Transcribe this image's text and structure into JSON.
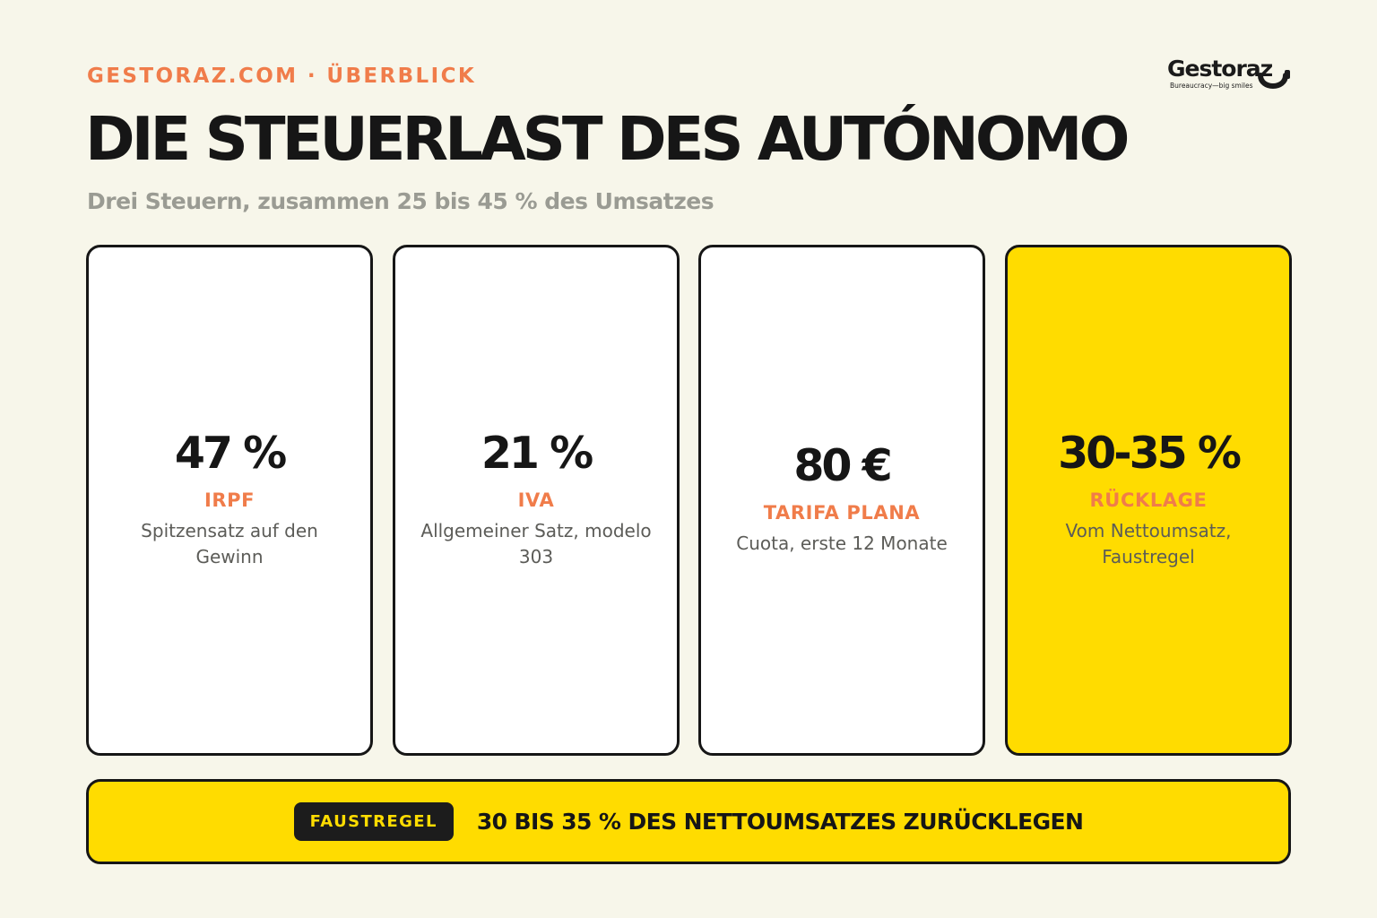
{
  "header": {
    "eyebrow": "GESTORAZ.COM · ÜBERBLICK",
    "title": "DIE STEUERLAST DES AUTÓNOMO",
    "subtitle": "Drei Steuern, zusammen 25 bis 45 % des Umsatzes"
  },
  "logo": {
    "wordmark": "Gestoraz",
    "tagline": "Bureaucracy—big smiles",
    "icon": "smile-icon"
  },
  "cards": [
    {
      "value": "47 %",
      "label": "IRPF",
      "description": "Spitzensatz auf den Gewinn"
    },
    {
      "value": "21 %",
      "label": "IVA",
      "description": "Allgemeiner Satz, modelo 303"
    },
    {
      "value": "80 €",
      "label": "TARIFA PLANA",
      "description": "Cuota, erste 12 Monate"
    },
    {
      "value": "30-35 %",
      "label": "RÜCKLAGE",
      "description": "Vom Nettoumsatz, Faustregel"
    }
  ],
  "banner": {
    "badge": "FAUSTREGEL",
    "text": "30 BIS 35 % DES NETTOUMSATZES ZURÜCKLEGEN"
  },
  "colors": {
    "background": "#f7f6ea",
    "accent_orange": "#f07c4a",
    "highlight_yellow": "#ffdc00",
    "ink": "#161616",
    "muted": "#9a9b93"
  }
}
